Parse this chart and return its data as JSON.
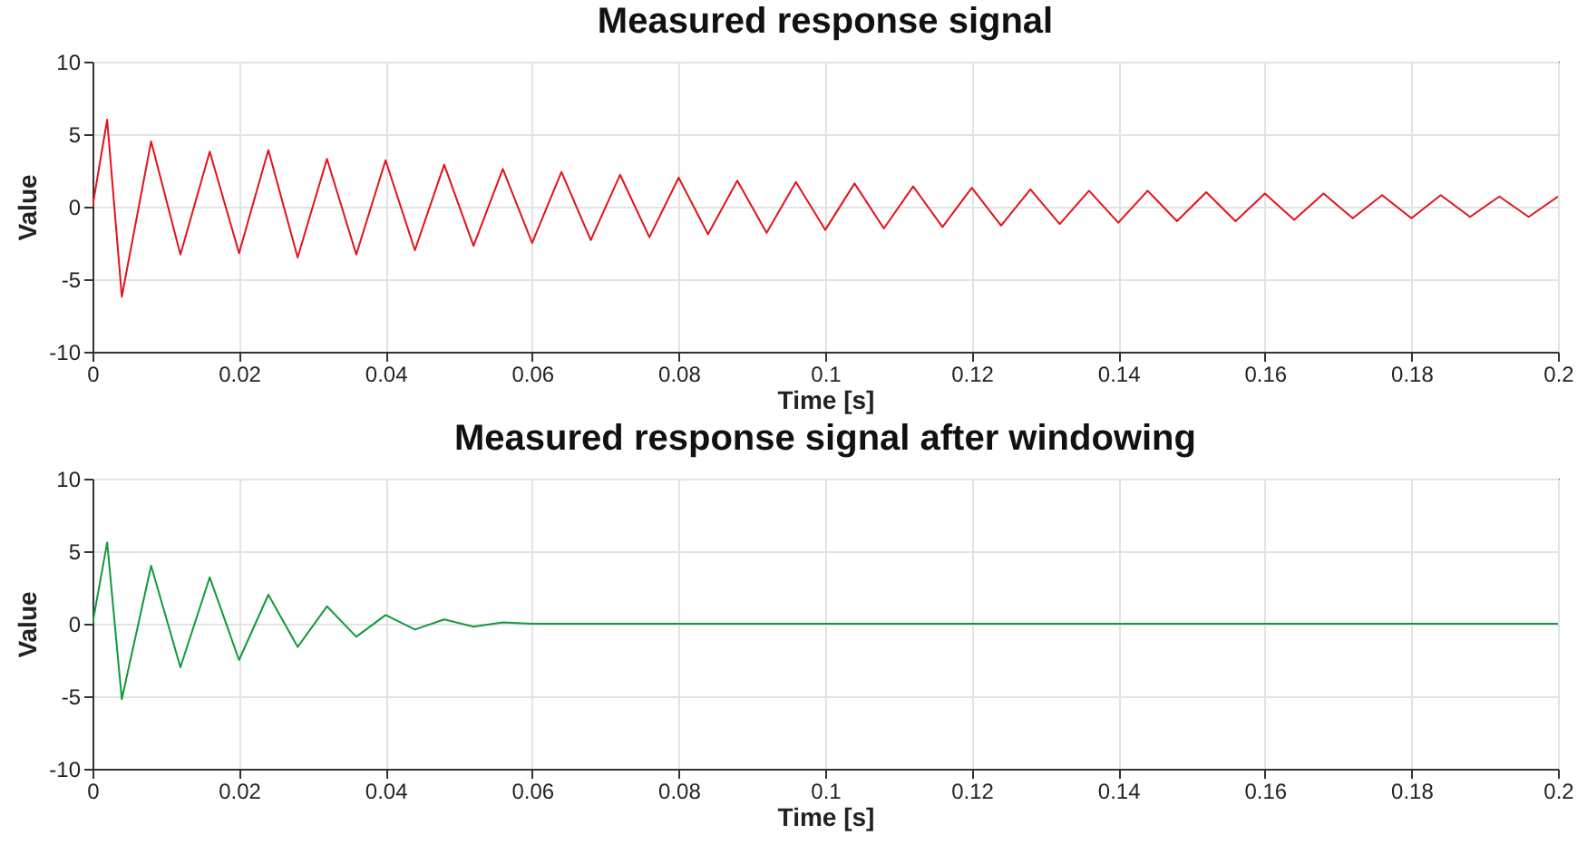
{
  "chart_data": [
    {
      "type": "line",
      "title": "Measured response signal",
      "xlabel": "Time [s]",
      "ylabel": "Value",
      "x": [
        0,
        0.002,
        0.004,
        0.008,
        0.012,
        0.016,
        0.02,
        0.024,
        0.028,
        0.032,
        0.036,
        0.04,
        0.044,
        0.048,
        0.052,
        0.056,
        0.06,
        0.064,
        0.068,
        0.072,
        0.076,
        0.08,
        0.084,
        0.088,
        0.092,
        0.096,
        0.1,
        0.104,
        0.108,
        0.112,
        0.116,
        0.12,
        0.124,
        0.128,
        0.132,
        0.136,
        0.14,
        0.144,
        0.148,
        0.152,
        0.156,
        0.16,
        0.164,
        0.168,
        0.172,
        0.176,
        0.18,
        0.184,
        0.188,
        0.192,
        0.196,
        0.2
      ],
      "series": [
        {
          "color": "#e3121b",
          "values": [
            0,
            6.0,
            -6.2,
            4.5,
            -3.3,
            3.8,
            -3.2,
            3.9,
            -3.5,
            3.3,
            -3.3,
            3.2,
            -3.0,
            2.9,
            -2.7,
            2.6,
            -2.5,
            2.4,
            -2.3,
            2.2,
            -2.1,
            2.0,
            -1.9,
            1.8,
            -1.8,
            1.7,
            -1.6,
            1.6,
            -1.5,
            1.4,
            -1.4,
            1.3,
            -1.3,
            1.2,
            -1.2,
            1.1,
            -1.1,
            1.1,
            -1.0,
            1.0,
            -1.0,
            0.9,
            -0.9,
            0.9,
            -0.8,
            0.8,
            -0.8,
            0.8,
            -0.7,
            0.7,
            -0.7,
            0.7
          ]
        }
      ],
      "xlim": [
        0,
        0.2
      ],
      "xticks": [
        0,
        0.02,
        0.04,
        0.06,
        0.08,
        0.1,
        0.12,
        0.14,
        0.16,
        0.18,
        0.2
      ],
      "ylim": [
        -10,
        10
      ],
      "yticks": [
        -10,
        -5,
        0,
        5,
        10
      ],
      "grid": true
    },
    {
      "type": "line",
      "title": "Measured response signal after windowing",
      "xlabel": "Time [s]",
      "ylabel": "Value",
      "x": [
        0,
        0.002,
        0.004,
        0.008,
        0.012,
        0.016,
        0.02,
        0.024,
        0.028,
        0.032,
        0.036,
        0.04,
        0.044,
        0.048,
        0.052,
        0.056,
        0.06,
        0.1,
        0.15,
        0.2
      ],
      "series": [
        {
          "color": "#0f9a3c",
          "values": [
            0,
            5.6,
            -5.2,
            4.0,
            -3.0,
            3.2,
            -2.5,
            2.0,
            -1.6,
            1.2,
            -0.9,
            0.6,
            -0.4,
            0.3,
            -0.2,
            0.1,
            0,
            0,
            0,
            0
          ]
        }
      ],
      "xlim": [
        0,
        0.2
      ],
      "xticks": [
        0,
        0.02,
        0.04,
        0.06,
        0.08,
        0.1,
        0.12,
        0.14,
        0.16,
        0.18,
        0.2
      ],
      "ylim": [
        -10,
        10
      ],
      "yticks": [
        -10,
        -5,
        0,
        5,
        10
      ],
      "grid": true
    }
  ]
}
